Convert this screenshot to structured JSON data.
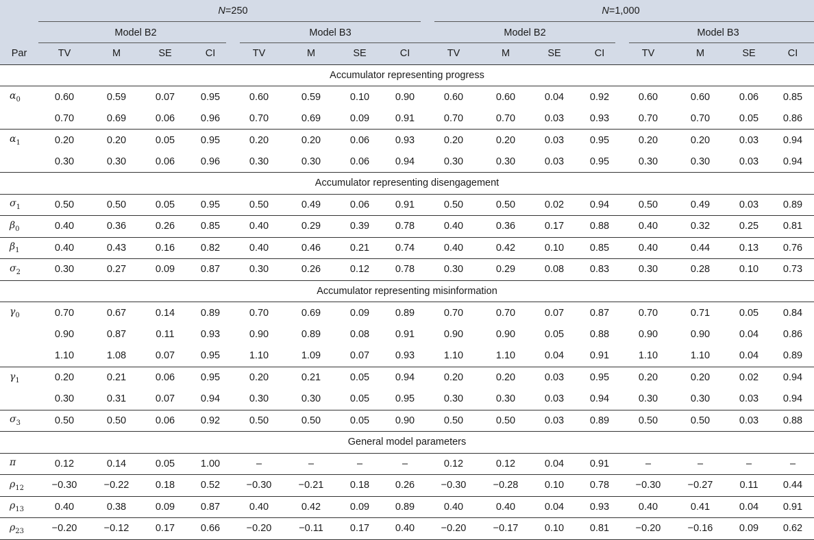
{
  "header": {
    "n250": "=250",
    "n1000": "=1,000",
    "n_symbol": "N",
    "model_b2": "Model B2",
    "model_b3": "Model B3",
    "par": "Par",
    "cols": [
      "TV",
      "M",
      "SE",
      "CI"
    ]
  },
  "sections": [
    {
      "title": "Accumulator representing progress",
      "rows": [
        {
          "sym": "α",
          "sub": "0",
          "v": [
            "0.60",
            "0.59",
            "0.07",
            "0.95",
            "0.60",
            "0.59",
            "0.10",
            "0.90",
            "0.60",
            "0.60",
            "0.04",
            "0.92",
            "0.60",
            "0.60",
            "0.06",
            "0.85"
          ]
        },
        {
          "sym": "",
          "sub": "",
          "v": [
            "0.70",
            "0.69",
            "0.06",
            "0.96",
            "0.70",
            "0.69",
            "0.09",
            "0.91",
            "0.70",
            "0.70",
            "0.03",
            "0.93",
            "0.70",
            "0.70",
            "0.05",
            "0.86"
          ]
        },
        {
          "sym": "α",
          "sub": "1",
          "v": [
            "0.20",
            "0.20",
            "0.05",
            "0.95",
            "0.20",
            "0.20",
            "0.06",
            "0.93",
            "0.20",
            "0.20",
            "0.03",
            "0.95",
            "0.20",
            "0.20",
            "0.03",
            "0.94"
          ]
        },
        {
          "sym": "",
          "sub": "",
          "v": [
            "0.30",
            "0.30",
            "0.06",
            "0.96",
            "0.30",
            "0.30",
            "0.06",
            "0.94",
            "0.30",
            "0.30",
            "0.03",
            "0.95",
            "0.30",
            "0.30",
            "0.03",
            "0.94"
          ]
        }
      ]
    },
    {
      "title": "Accumulator representing disengagement",
      "rows": [
        {
          "sym": "σ",
          "sub": "1",
          "v": [
            "0.50",
            "0.50",
            "0.05",
            "0.95",
            "0.50",
            "0.49",
            "0.06",
            "0.91",
            "0.50",
            "0.50",
            "0.02",
            "0.94",
            "0.50",
            "0.49",
            "0.03",
            "0.89"
          ]
        },
        {
          "sym": "β",
          "sub": "0",
          "v": [
            "0.40",
            "0.36",
            "0.26",
            "0.85",
            "0.40",
            "0.29",
            "0.39",
            "0.78",
            "0.40",
            "0.36",
            "0.17",
            "0.88",
            "0.40",
            "0.32",
            "0.25",
            "0.81"
          ]
        },
        {
          "sym": "β",
          "sub": "1",
          "v": [
            "0.40",
            "0.43",
            "0.16",
            "0.82",
            "0.40",
            "0.46",
            "0.21",
            "0.74",
            "0.40",
            "0.42",
            "0.10",
            "0.85",
            "0.40",
            "0.44",
            "0.13",
            "0.76"
          ]
        },
        {
          "sym": "σ",
          "sub": "2",
          "v": [
            "0.30",
            "0.27",
            "0.09",
            "0.87",
            "0.30",
            "0.26",
            "0.12",
            "0.78",
            "0.30",
            "0.29",
            "0.08",
            "0.83",
            "0.30",
            "0.28",
            "0.10",
            "0.73"
          ]
        }
      ]
    },
    {
      "title": "Accumulator representing misinformation",
      "rows": [
        {
          "sym": "γ",
          "sub": "0",
          "v": [
            "0.70",
            "0.67",
            "0.14",
            "0.89",
            "0.70",
            "0.69",
            "0.09",
            "0.89",
            "0.70",
            "0.70",
            "0.07",
            "0.87",
            "0.70",
            "0.71",
            "0.05",
            "0.84"
          ]
        },
        {
          "sym": "",
          "sub": "",
          "v": [
            "0.90",
            "0.87",
            "0.11",
            "0.93",
            "0.90",
            "0.89",
            "0.08",
            "0.91",
            "0.90",
            "0.90",
            "0.05",
            "0.88",
            "0.90",
            "0.90",
            "0.04",
            "0.86"
          ]
        },
        {
          "sym": "",
          "sub": "",
          "v": [
            "1.10",
            "1.08",
            "0.07",
            "0.95",
            "1.10",
            "1.09",
            "0.07",
            "0.93",
            "1.10",
            "1.10",
            "0.04",
            "0.91",
            "1.10",
            "1.10",
            "0.04",
            "0.89"
          ]
        },
        {
          "sym": "γ",
          "sub": "1",
          "v": [
            "0.20",
            "0.21",
            "0.06",
            "0.95",
            "0.20",
            "0.21",
            "0.05",
            "0.94",
            "0.20",
            "0.20",
            "0.03",
            "0.95",
            "0.20",
            "0.20",
            "0.02",
            "0.94"
          ]
        },
        {
          "sym": "",
          "sub": "",
          "v": [
            "0.30",
            "0.31",
            "0.07",
            "0.94",
            "0.30",
            "0.30",
            "0.05",
            "0.95",
            "0.30",
            "0.30",
            "0.03",
            "0.94",
            "0.30",
            "0.30",
            "0.03",
            "0.94"
          ]
        },
        {
          "sym": "σ",
          "sub": "3",
          "v": [
            "0.50",
            "0.50",
            "0.06",
            "0.92",
            "0.50",
            "0.50",
            "0.05",
            "0.90",
            "0.50",
            "0.50",
            "0.03",
            "0.89",
            "0.50",
            "0.50",
            "0.03",
            "0.88"
          ]
        }
      ]
    },
    {
      "title": "General model parameters",
      "rows": [
        {
          "sym": "π",
          "sub": "",
          "v": [
            "0.12",
            "0.14",
            "0.05",
            "1.00",
            "–",
            "–",
            "–",
            "–",
            "0.12",
            "0.12",
            "0.04",
            "0.91",
            "–",
            "–",
            "–",
            "–"
          ]
        },
        {
          "sym": "ρ",
          "sub": "12",
          "v": [
            "−0.30",
            "−0.22",
            "0.18",
            "0.52",
            "−0.30",
            "−0.21",
            "0.18",
            "0.26",
            "−0.30",
            "−0.28",
            "0.10",
            "0.78",
            "−0.30",
            "−0.27",
            "0.11",
            "0.44"
          ]
        },
        {
          "sym": "ρ",
          "sub": "13",
          "v": [
            "0.40",
            "0.38",
            "0.09",
            "0.87",
            "0.40",
            "0.42",
            "0.09",
            "0.89",
            "0.40",
            "0.40",
            "0.04",
            "0.93",
            "0.40",
            "0.41",
            "0.04",
            "0.91"
          ]
        },
        {
          "sym": "ρ",
          "sub": "23",
          "v": [
            "−0.20",
            "−0.12",
            "0.17",
            "0.66",
            "−0.20",
            "−0.11",
            "0.17",
            "0.40",
            "−0.20",
            "−0.17",
            "0.10",
            "0.81",
            "−0.20",
            "−0.16",
            "0.09",
            "0.62"
          ]
        }
      ]
    }
  ]
}
